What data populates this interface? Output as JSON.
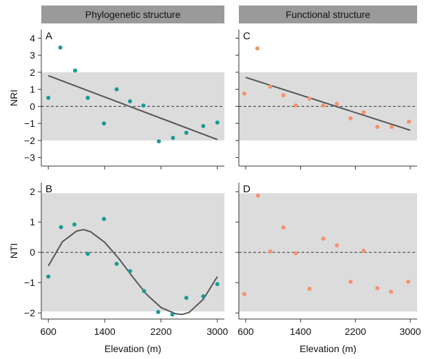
{
  "chart_data": [
    {
      "panel": "A",
      "column_header": "Phylogenetic structure",
      "type": "scatter",
      "ylabel": "NRI",
      "xlabel": "Elevation (m)",
      "xticks": [
        600,
        1400,
        2200,
        3000
      ],
      "yticks": [
        -3,
        -2,
        -1,
        0,
        1,
        2,
        3,
        4
      ],
      "ylim": [
        -3.5,
        4.5
      ],
      "shaded_band": [
        -2,
        2
      ],
      "reference_line": 0,
      "grid": false,
      "point_color": "#1a9a96",
      "points": [
        {
          "x": 600,
          "y": 0.5
        },
        {
          "x": 770,
          "y": 3.45
        },
        {
          "x": 980,
          "y": 2.1
        },
        {
          "x": 1160,
          "y": 0.5
        },
        {
          "x": 1390,
          "y": -1.0
        },
        {
          "x": 1570,
          "y": 1.0
        },
        {
          "x": 1760,
          "y": 0.3
        },
        {
          "x": 1950,
          "y": 0.05
        },
        {
          "x": 2170,
          "y": -2.05
        },
        {
          "x": 2370,
          "y": -1.85
        },
        {
          "x": 2560,
          "y": -1.55
        },
        {
          "x": 2800,
          "y": -1.15
        },
        {
          "x": 3000,
          "y": -0.95
        }
      ],
      "fit": {
        "kind": "linear",
        "x": [
          600,
          3000
        ],
        "y": [
          1.8,
          -1.95
        ]
      }
    },
    {
      "panel": "C",
      "column_header": "Functional structure",
      "type": "scatter",
      "xlabel": "Elevation (m)",
      "xticks": [
        600,
        1400,
        2200,
        3000
      ],
      "ylim": [
        -3.5,
        4.5
      ],
      "shaded_band": [
        -2,
        2
      ],
      "reference_line": 0,
      "grid": false,
      "point_color": "#f4936c",
      "points": [
        {
          "x": 580,
          "y": 0.75
        },
        {
          "x": 770,
          "y": 3.4
        },
        {
          "x": 960,
          "y": 1.15
        },
        {
          "x": 1150,
          "y": 0.65
        },
        {
          "x": 1330,
          "y": 0.05
        },
        {
          "x": 1530,
          "y": 0.45
        },
        {
          "x": 1730,
          "y": 0.05
        },
        {
          "x": 1930,
          "y": 0.15
        },
        {
          "x": 2130,
          "y": -0.7
        },
        {
          "x": 2320,
          "y": -0.35
        },
        {
          "x": 2520,
          "y": -1.2
        },
        {
          "x": 2730,
          "y": -1.2
        },
        {
          "x": 2980,
          "y": -0.9
        }
      ],
      "fit": {
        "kind": "linear",
        "x": [
          600,
          3000
        ],
        "y": [
          1.7,
          -1.4
        ]
      }
    },
    {
      "panel": "B",
      "type": "scatter",
      "ylabel": "NTI",
      "xlabel": "Elevation (m)",
      "xticks": [
        600,
        1400,
        2200,
        3000
      ],
      "yticks": [
        -2,
        -1,
        0,
        1,
        2
      ],
      "ylim": [
        -2.2,
        2.3
      ],
      "shaded_band": [
        -1.95,
        1.95
      ],
      "reference_line": 0,
      "grid": false,
      "point_color": "#1a9a96",
      "points": [
        {
          "x": 600,
          "y": -0.8
        },
        {
          "x": 780,
          "y": 0.83
        },
        {
          "x": 970,
          "y": 0.92
        },
        {
          "x": 1160,
          "y": -0.05
        },
        {
          "x": 1390,
          "y": 1.1
        },
        {
          "x": 1570,
          "y": -0.38
        },
        {
          "x": 1760,
          "y": -0.62
        },
        {
          "x": 1960,
          "y": -1.28
        },
        {
          "x": 2160,
          "y": -1.97
        },
        {
          "x": 2360,
          "y": -2.05
        },
        {
          "x": 2560,
          "y": -1.5
        },
        {
          "x": 2800,
          "y": -1.45
        },
        {
          "x": 3000,
          "y": -1.05
        }
      ],
      "fit": {
        "kind": "cubic",
        "x": [
          600,
          800,
          1000,
          1100,
          1200,
          1400,
          1600,
          1800,
          2000,
          2200,
          2400,
          2500,
          2600,
          2800,
          3000
        ],
        "y": [
          -0.45,
          0.35,
          0.7,
          0.75,
          0.68,
          0.33,
          -0.2,
          -0.82,
          -1.4,
          -1.82,
          -2.02,
          -2.05,
          -1.98,
          -1.55,
          -0.8
        ]
      }
    },
    {
      "panel": "D",
      "type": "scatter",
      "xlabel": "Elevation (m)",
      "xticks": [
        600,
        1400,
        2200,
        3000
      ],
      "ylim": [
        -2.2,
        2.3
      ],
      "shaded_band": [
        -1.95,
        1.95
      ],
      "reference_line": 0,
      "grid": false,
      "point_color": "#f4936c",
      "points": [
        {
          "x": 580,
          "y": -1.38
        },
        {
          "x": 780,
          "y": 1.87
        },
        {
          "x": 960,
          "y": 0.03
        },
        {
          "x": 1150,
          "y": 0.82
        },
        {
          "x": 1330,
          "y": -0.03
        },
        {
          "x": 1530,
          "y": -1.2
        },
        {
          "x": 1730,
          "y": 0.45
        },
        {
          "x": 1930,
          "y": 0.23
        },
        {
          "x": 2130,
          "y": -0.97
        },
        {
          "x": 2320,
          "y": 0.05
        },
        {
          "x": 2520,
          "y": -1.18
        },
        {
          "x": 2720,
          "y": -1.3
        },
        {
          "x": 2970,
          "y": -0.97
        }
      ]
    }
  ]
}
